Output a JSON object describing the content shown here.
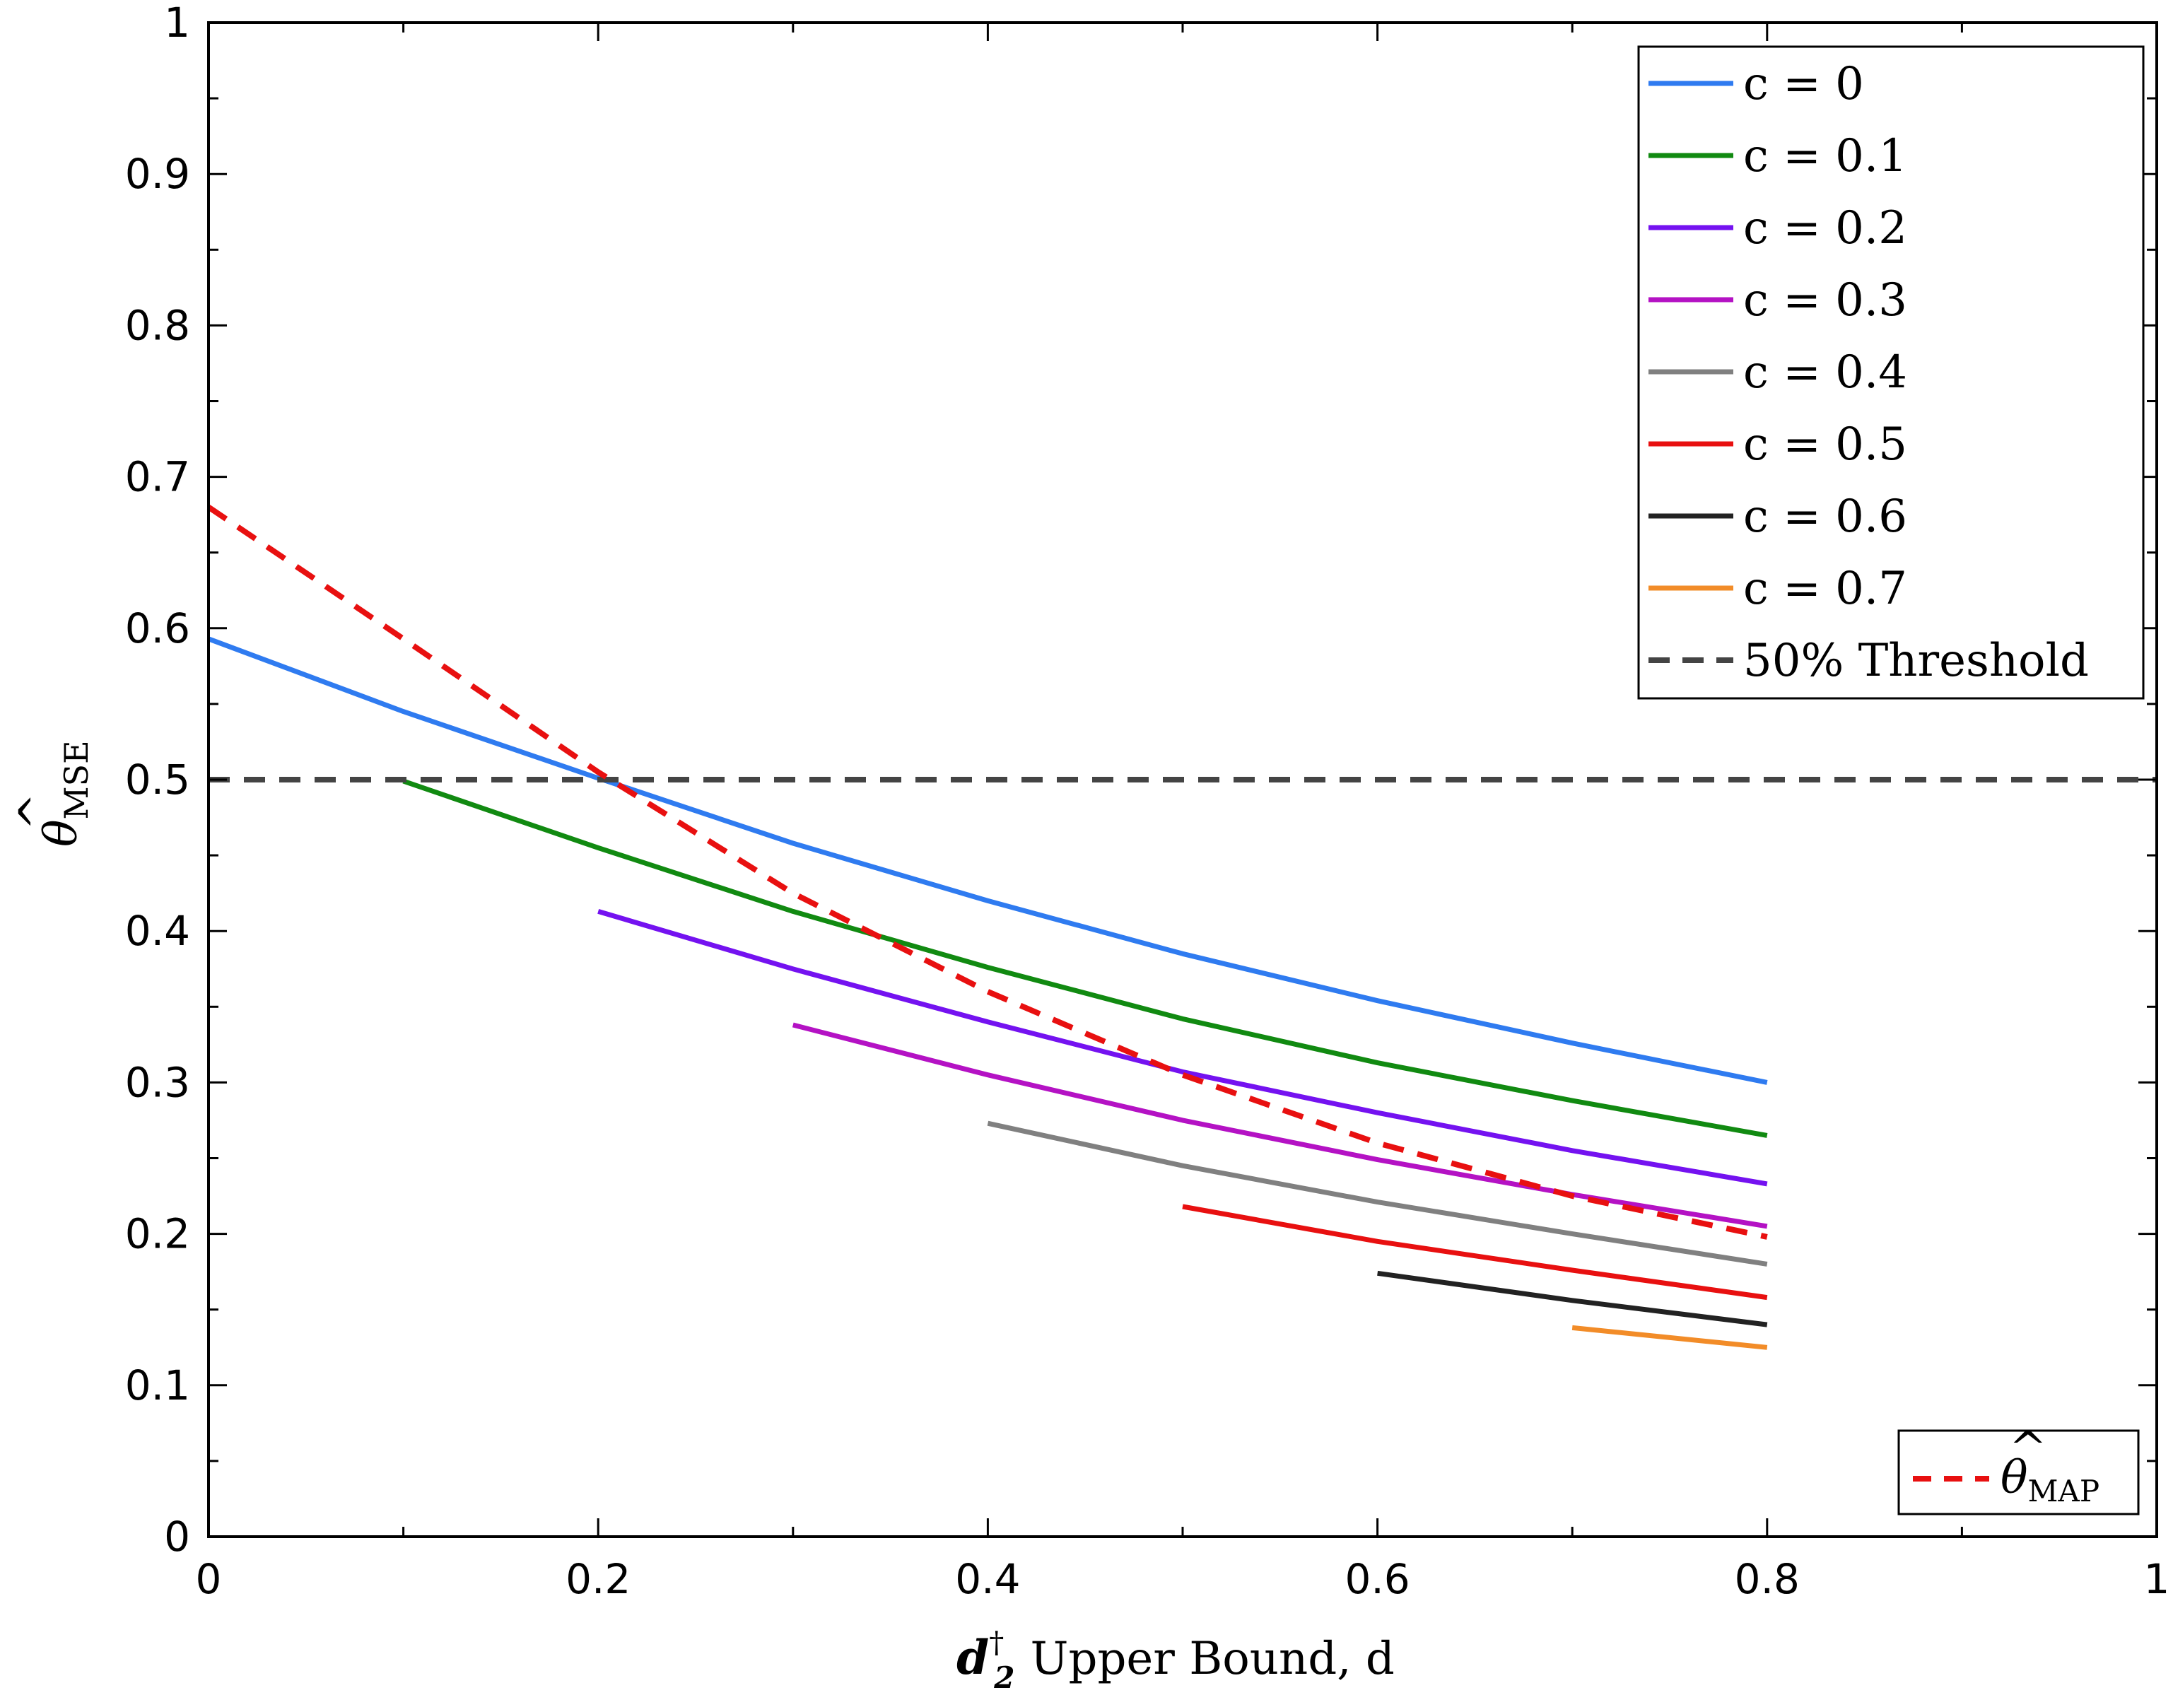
{
  "chart_data": {
    "type": "line",
    "xlabel": {
      "symbol": "d",
      "superscript": "†",
      "subscript": "2",
      "rest": "Upper Bound, d"
    },
    "ylabel": {
      "symbol": "θ",
      "hat": "^",
      "subscript": "MSE"
    },
    "xlim": [
      0,
      1
    ],
    "ylim": [
      0,
      1
    ],
    "xticks": [
      "0",
      "0.2",
      "0.4",
      "0.6",
      "0.8",
      "1"
    ],
    "yticks": [
      "0",
      "0.1",
      "0.2",
      "0.3",
      "0.4",
      "0.5",
      "0.6",
      "0.7",
      "0.8",
      "0.9",
      "1"
    ],
    "xtick_values": [
      0,
      0.2,
      0.4,
      0.6,
      0.8,
      1
    ],
    "ytick_values": [
      0,
      0.1,
      0.2,
      0.3,
      0.4,
      0.5,
      0.6,
      0.7,
      0.8,
      0.9,
      1
    ],
    "grid": false,
    "series": [
      {
        "name": "c = 0",
        "color": "#2f7bf0",
        "style": "solid",
        "x": [
          0,
          0.1,
          0.2,
          0.3,
          0.4,
          0.5,
          0.6,
          0.7,
          0.8
        ],
        "y": [
          0.593,
          0.545,
          0.501,
          0.458,
          0.42,
          0.385,
          0.354,
          0.326,
          0.3
        ]
      },
      {
        "name": "c = 0.1",
        "color": "#118a11",
        "style": "solid",
        "x": [
          0.1,
          0.2,
          0.3,
          0.4,
          0.5,
          0.6,
          0.7,
          0.8
        ],
        "y": [
          0.499,
          0.455,
          0.413,
          0.376,
          0.342,
          0.313,
          0.288,
          0.265
        ]
      },
      {
        "name": "c = 0.2",
        "color": "#7412f0",
        "style": "solid",
        "x": [
          0.2,
          0.3,
          0.4,
          0.5,
          0.6,
          0.7,
          0.8
        ],
        "y": [
          0.413,
          0.375,
          0.34,
          0.307,
          0.28,
          0.255,
          0.233
        ]
      },
      {
        "name": "c = 0.3",
        "color": "#b412c4",
        "style": "solid",
        "x": [
          0.3,
          0.4,
          0.5,
          0.6,
          0.7,
          0.8
        ],
        "y": [
          0.338,
          0.305,
          0.275,
          0.249,
          0.226,
          0.205
        ]
      },
      {
        "name": "c = 0.4",
        "color": "#808080",
        "style": "solid",
        "x": [
          0.4,
          0.5,
          0.6,
          0.7,
          0.8
        ],
        "y": [
          0.273,
          0.245,
          0.221,
          0.2,
          0.18
        ]
      },
      {
        "name": "c = 0.5",
        "color": "#e81010",
        "style": "solid",
        "x": [
          0.5,
          0.6,
          0.7,
          0.8
        ],
        "y": [
          0.218,
          0.195,
          0.176,
          0.158
        ]
      },
      {
        "name": "c = 0.6",
        "color": "#222222",
        "style": "solid",
        "x": [
          0.6,
          0.7,
          0.8
        ],
        "y": [
          0.174,
          0.156,
          0.14
        ]
      },
      {
        "name": "c = 0.7",
        "color": "#f28c28",
        "style": "solid",
        "x": [
          0.7,
          0.8
        ],
        "y": [
          0.138,
          0.125
        ]
      },
      {
        "name": "50% Threshold",
        "color": "#444444",
        "style": "dashed",
        "x": [
          0,
          1
        ],
        "y": [
          0.5,
          0.5
        ]
      },
      {
        "name": "θ̂MAP",
        "color": "#e81010",
        "style": "dashed",
        "x": [
          0,
          0.1,
          0.2,
          0.3,
          0.4,
          0.5,
          0.6,
          0.7,
          0.8
        ],
        "y": [
          0.68,
          0.593,
          0.505,
          0.425,
          0.36,
          0.305,
          0.26,
          0.225,
          0.198
        ]
      }
    ],
    "legend_main": {
      "placement": "top-right",
      "entries": [
        "c = 0",
        "c = 0.1",
        "c = 0.2",
        "c = 0.3",
        "c = 0.4",
        "c = 0.5",
        "c = 0.6",
        "c = 0.7",
        "50% Threshold"
      ]
    },
    "legend_map": {
      "placement": "bottom-right",
      "symbol": "θ",
      "hat": "^",
      "subscript": "MAP"
    }
  }
}
